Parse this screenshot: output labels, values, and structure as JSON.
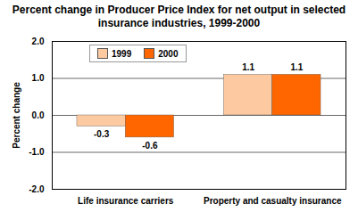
{
  "chart_data": {
    "type": "bar",
    "title": "Percent change in Producer Price Index for net output in selected insurance industries, 1999-2000",
    "y_label": "Percent change",
    "categories": [
      "Life insurance carriers",
      "Property and casualty insurance"
    ],
    "series": [
      {
        "name": "1999",
        "color": "#fdc9a0",
        "values": [
          -0.3,
          1.1
        ]
      },
      {
        "name": "2000",
        "color": "#ff6600",
        "values": [
          -0.6,
          1.1
        ]
      }
    ],
    "ylim": [
      -2,
      2
    ],
    "yticks": [
      {
        "value": -2,
        "label": "-2.0"
      },
      {
        "value": -1,
        "label": "-1.0"
      },
      {
        "value": 0,
        "label": "0.0"
      },
      {
        "value": 1,
        "label": "1.0"
      },
      {
        "value": 2,
        "label": "2.0"
      }
    ],
    "grid": true,
    "legend": "top-left",
    "data_labels": true
  }
}
